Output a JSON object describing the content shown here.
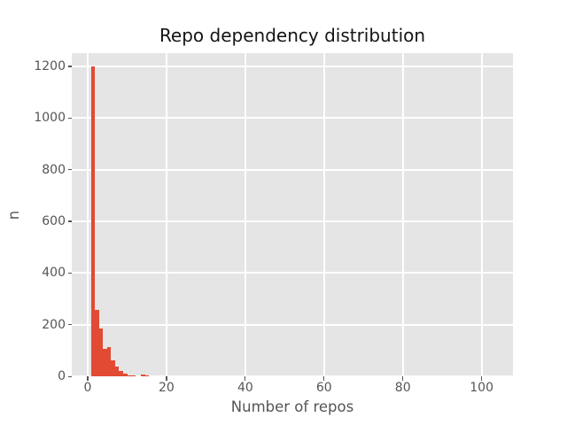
{
  "chart_data": {
    "type": "histogram",
    "title": "Repo dependency distribution",
    "xlabel": "Number of repos",
    "ylabel": "n",
    "x_ticks": [
      0,
      20,
      40,
      60,
      80,
      100
    ],
    "y_ticks": [
      0,
      200,
      400,
      600,
      800,
      1000,
      1200
    ],
    "xlim": [
      -4.05,
      107.95
    ],
    "ylim": [
      0,
      1251
    ],
    "grid": true,
    "legend": "none",
    "bins": [
      {
        "x0": 0.84,
        "x1": 1.86,
        "n": 1198
      },
      {
        "x0": 1.86,
        "x1": 2.88,
        "n": 257
      },
      {
        "x0": 2.88,
        "x1": 3.9,
        "n": 185
      },
      {
        "x0": 3.9,
        "x1": 4.92,
        "n": 105
      },
      {
        "x0": 4.92,
        "x1": 5.94,
        "n": 113
      },
      {
        "x0": 5.94,
        "x1": 6.96,
        "n": 60
      },
      {
        "x0": 6.96,
        "x1": 7.98,
        "n": 39
      },
      {
        "x0": 7.98,
        "x1": 9.0,
        "n": 22
      },
      {
        "x0": 9.0,
        "x1": 10.02,
        "n": 12
      },
      {
        "x0": 10.02,
        "x1": 11.04,
        "n": 5
      },
      {
        "x0": 11.04,
        "x1": 12.06,
        "n": 4
      },
      {
        "x0": 13.6,
        "x1": 14.6,
        "n": 8
      },
      {
        "x0": 14.6,
        "x1": 15.6,
        "n": 4
      }
    ],
    "colors": {
      "bar": "#E24A33",
      "panel_bg": "#E5E5E5",
      "grid": "#FFFFFF",
      "tick": "#555555",
      "tick_label": "#555555",
      "axis_label": "#555555",
      "title": "#141414"
    }
  }
}
